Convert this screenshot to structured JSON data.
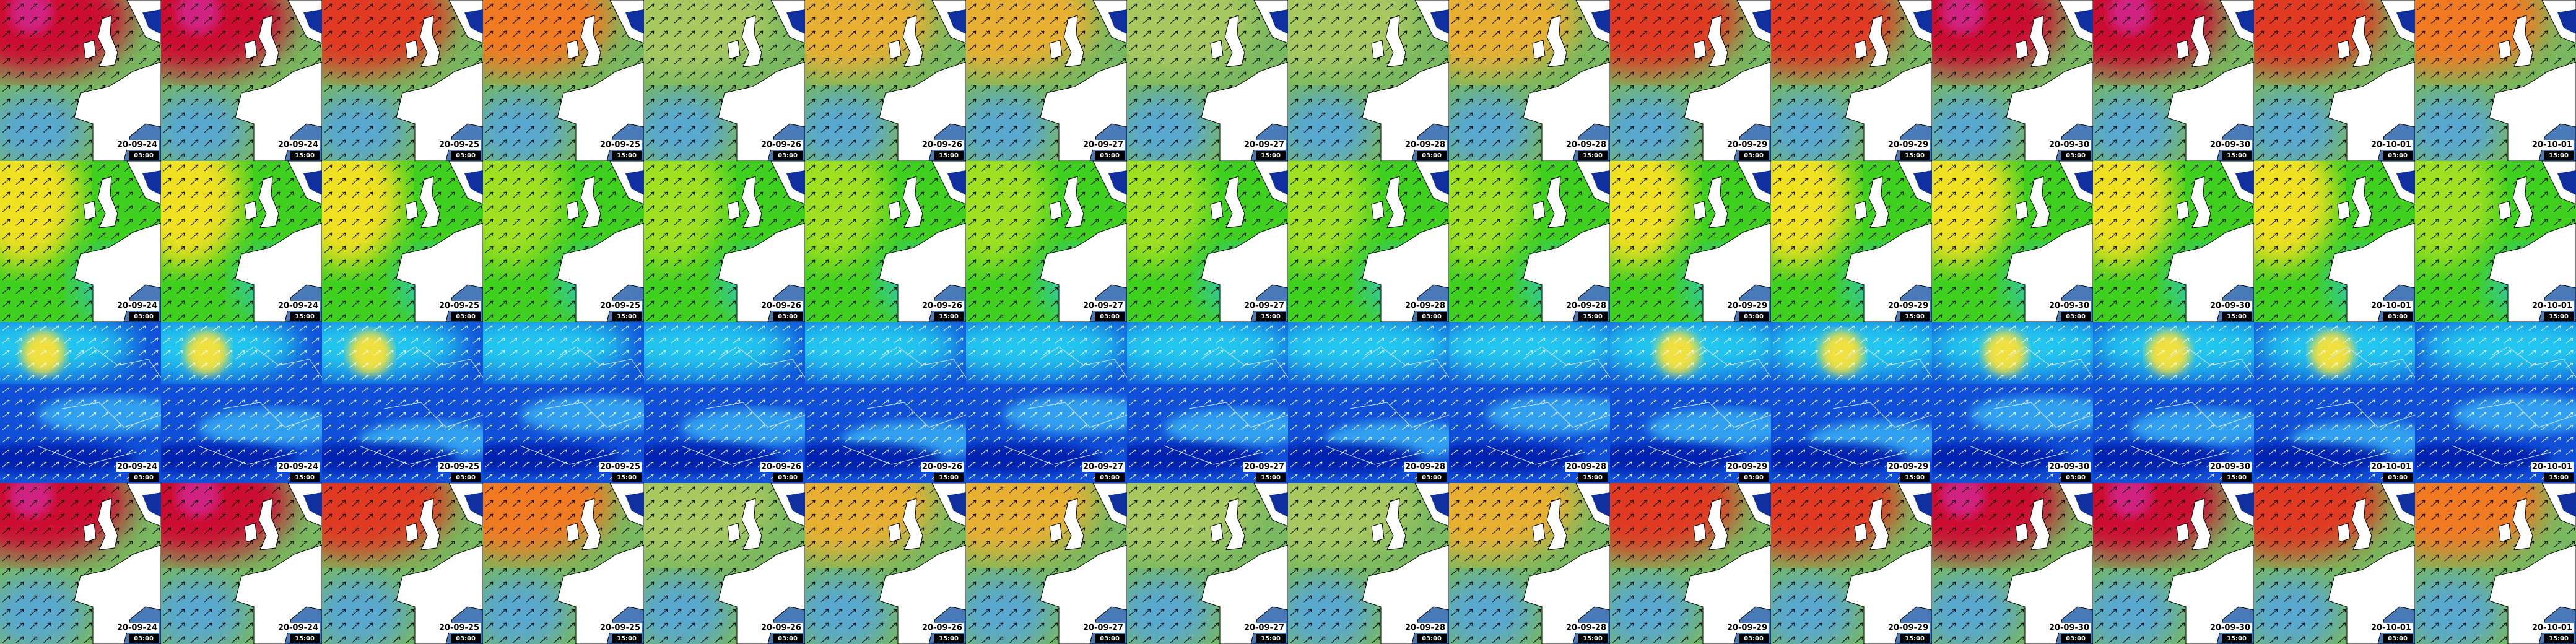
{
  "rows": [
    {
      "tiles": [
        {
          "date": "20-09-24",
          "time": "03:00"
        },
        {
          "date": "20-09-24",
          "time": "15:00"
        },
        {
          "date": "20-09-25",
          "time": "03:00"
        },
        {
          "date": "20-09-25",
          "time": "15:00"
        },
        {
          "date": "20-09-26",
          "time": "03:00"
        },
        {
          "date": "20-09-26",
          "time": "15:00"
        },
        {
          "date": "20-09-27",
          "time": "03:00"
        },
        {
          "date": "20-09-27",
          "time": "15:00"
        },
        {
          "date": "20-09-28",
          "time": "03:00"
        },
        {
          "date": "20-09-28",
          "time": "15:00"
        },
        {
          "date": "20-09-29",
          "time": "03:00"
        },
        {
          "date": "20-09-29",
          "time": "15:00"
        },
        {
          "date": "20-09-30",
          "time": "03:00"
        },
        {
          "date": "20-09-30",
          "time": "15:00"
        },
        {
          "date": "20-10-01",
          "time": "03:00"
        },
        {
          "date": "20-10-01",
          "time": "15:00"
        }
      ]
    },
    {
      "tiles": [
        {
          "date": "20-09-24",
          "time": "03:00"
        },
        {
          "date": "20-09-24",
          "time": "15:00"
        },
        {
          "date": "20-09-25",
          "time": "03:00"
        },
        {
          "date": "20-09-25",
          "time": "15:00"
        },
        {
          "date": "20-09-26",
          "time": "03:00"
        },
        {
          "date": "20-09-26",
          "time": "15:00"
        },
        {
          "date": "20-09-27",
          "time": "03:00"
        },
        {
          "date": "20-09-27",
          "time": "15:00"
        },
        {
          "date": "20-09-28",
          "time": "03:00"
        },
        {
          "date": "20-09-28",
          "time": "15:00"
        },
        {
          "date": "20-09-29",
          "time": "03:00"
        },
        {
          "date": "20-09-29",
          "time": "15:00"
        },
        {
          "date": "20-09-30",
          "time": "03:00"
        },
        {
          "date": "20-09-30",
          "time": "15:00"
        },
        {
          "date": "20-10-01",
          "time": "03:00"
        },
        {
          "date": "20-10-01",
          "time": "15:00"
        }
      ]
    },
    {
      "tiles": [
        {
          "date": "20-09-24",
          "time": "03:00"
        },
        {
          "date": "20-09-24",
          "time": "15:00"
        },
        {
          "date": "20-09-25",
          "time": "03:00"
        },
        {
          "date": "20-09-25",
          "time": "15:00"
        },
        {
          "date": "20-09-26",
          "time": "03:00"
        },
        {
          "date": "20-09-26",
          "time": "15:00"
        },
        {
          "date": "20-09-27",
          "time": "03:00"
        },
        {
          "date": "20-09-27",
          "time": "15:00"
        },
        {
          "date": "20-09-28",
          "time": "03:00"
        },
        {
          "date": "20-09-28",
          "time": "15:00"
        },
        {
          "date": "20-09-29",
          "time": "03:00"
        },
        {
          "date": "20-09-29",
          "time": "15:00"
        },
        {
          "date": "20-09-30",
          "time": "03:00"
        },
        {
          "date": "20-09-30",
          "time": "15:00"
        },
        {
          "date": "20-10-01",
          "time": "03:00"
        },
        {
          "date": "20-10-01",
          "time": "15:00"
        }
      ]
    },
    {
      "tiles": [
        {
          "date": "20-09-24",
          "time": "03:00"
        },
        {
          "date": "20-09-24",
          "time": "15:00"
        },
        {
          "date": "20-09-25",
          "time": "03:00"
        },
        {
          "date": "20-09-25",
          "time": "15:00"
        },
        {
          "date": "20-09-26",
          "time": "03:00"
        },
        {
          "date": "20-09-26",
          "time": "15:00"
        },
        {
          "date": "20-09-27",
          "time": "03:00"
        },
        {
          "date": "20-09-27",
          "time": "15:00"
        },
        {
          "date": "20-09-28",
          "time": "03:00"
        },
        {
          "date": "20-09-28",
          "time": "15:00"
        },
        {
          "date": "20-09-29",
          "time": "03:00"
        },
        {
          "date": "20-09-29",
          "time": "15:00"
        },
        {
          "date": "20-09-30",
          "time": "03:00"
        },
        {
          "date": "20-09-30",
          "time": "15:00"
        },
        {
          "date": "20-10-01",
          "time": "03:00"
        },
        {
          "date": "20-10-01",
          "time": "15:00"
        }
      ]
    }
  ]
}
